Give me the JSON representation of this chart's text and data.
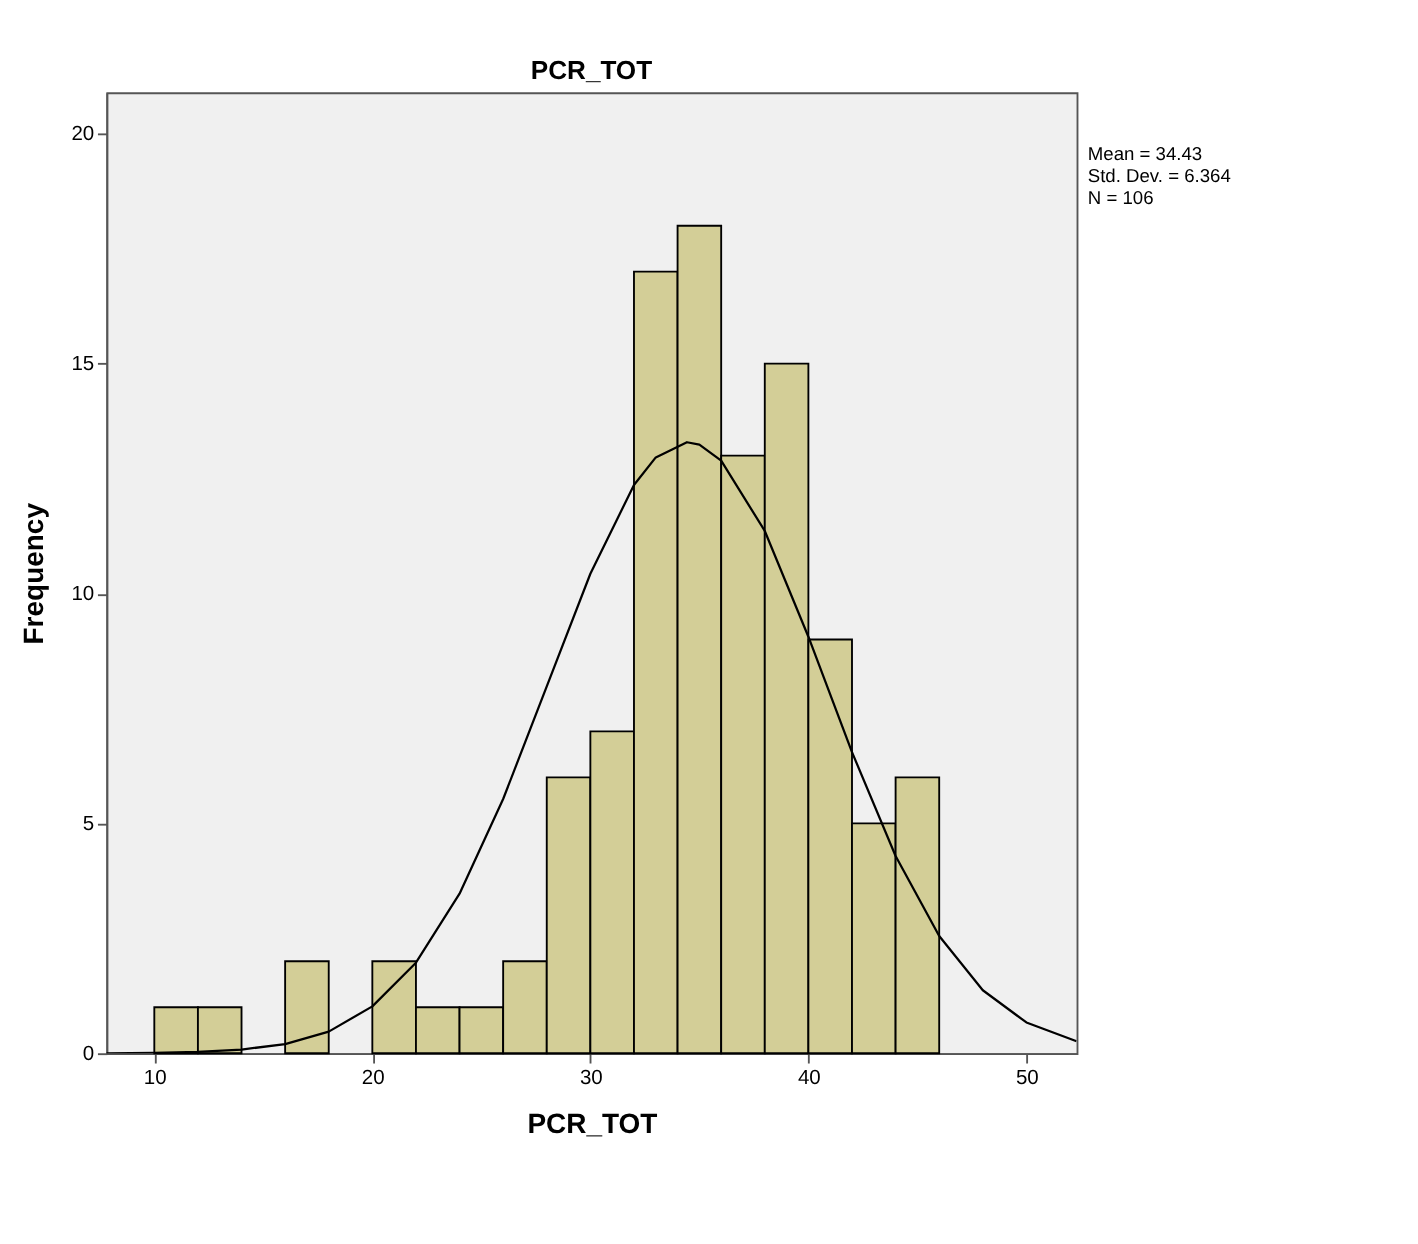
{
  "chart_data": {
    "type": "histogram",
    "title": "PCR_TOT",
    "xlabel": "PCR_TOT",
    "ylabel": "Frequency",
    "bins": [
      10,
      12,
      14,
      16,
      18,
      20,
      22,
      24,
      26,
      28,
      30,
      32,
      34,
      36,
      38,
      40,
      42,
      44,
      46
    ],
    "series": [
      {
        "color": "#d3ce97",
        "values": [
          1,
          1,
          0,
          2,
          0,
          2,
          1,
          1,
          2,
          6,
          7,
          17,
          18,
          13,
          15,
          9,
          5,
          6
        ]
      },
      {
        "type": "line",
        "color": "#000000",
        "x": [
          7.8,
          10,
          12,
          14,
          16,
          18,
          20,
          22,
          24,
          26,
          28,
          30,
          32,
          33,
          34.43,
          35,
          36,
          38,
          40,
          42,
          44,
          46,
          48,
          50,
          52.3
        ],
        "values": [
          0.0,
          0.01,
          0.03,
          0.08,
          0.2,
          0.47,
          1.02,
          1.97,
          3.47,
          5.53,
          7.98,
          10.43,
          12.36,
          12.96,
          13.29,
          13.24,
          12.89,
          11.36,
          9.06,
          6.55,
          4.29,
          2.55,
          1.37,
          0.67,
          0.26
        ]
      }
    ],
    "xlim": [
      7.8,
      52.3
    ],
    "ylim": [
      0,
      20.9
    ],
    "xticks": [
      10,
      20,
      30,
      40,
      50
    ],
    "yticks": [
      0,
      5,
      10,
      15,
      20
    ],
    "annotations": [
      "Mean = 34.43",
      "Std. Dev. = 6.364",
      "N = 106"
    ]
  }
}
